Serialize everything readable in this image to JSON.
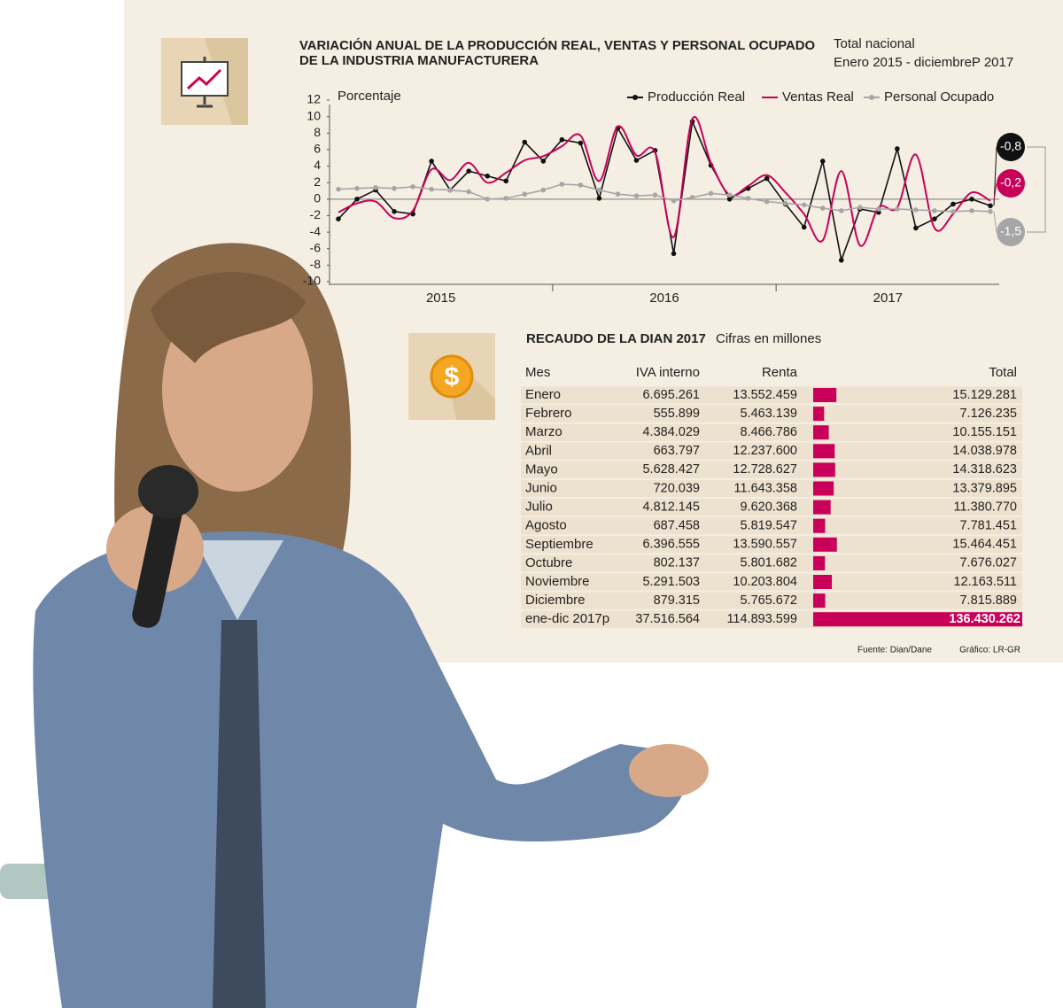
{
  "chart_data": [
    {
      "type": "line",
      "title": [
        "VARIACIÓN ANUAL DE LA PRODUCCIÓN REAL, VENTAS Y PERSONAL OCUPADO",
        "DE LA INDUSTRIA MANUFACTURERA"
      ],
      "subtitle": [
        "Total nacional",
        "Enero 2015 - diciembreP 2017"
      ],
      "ylabel": "Porcentaje",
      "year_labels": [
        "2015",
        "2016",
        "2017"
      ],
      "ylim": [
        -10,
        12
      ],
      "yticks": [
        -10,
        -8,
        -6,
        -4,
        -2,
        0,
        2,
        4,
        6,
        8,
        10,
        12
      ],
      "series": [
        {
          "name": "Producción Real",
          "color": "#111111",
          "markers": true,
          "smooth": false,
          "end_label": "-0,8",
          "values": [
            -2.4,
            0,
            1.1,
            -1.5,
            -1.8,
            4.6,
            1.1,
            3.4,
            2.8,
            2.2,
            6.9,
            4.6,
            7.2,
            6.8,
            0.1,
            8.6,
            4.7,
            5.9,
            -6.6,
            9.4,
            4.1,
            0,
            1.3,
            2.5,
            -0.6,
            -3.4,
            4.6,
            -7.4,
            -1.2,
            -1.6,
            6.1,
            -3.5,
            -2.4,
            -0.6,
            0,
            -0.8
          ]
        },
        {
          "name": "Ventas Real",
          "color": "#c8005a",
          "markers": false,
          "smooth": true,
          "end_label": "-0,2",
          "values": [
            -1.6,
            -0.5,
            -0.3,
            -2.3,
            -1.4,
            3.6,
            2.3,
            4.4,
            2.0,
            3.2,
            4.7,
            5.2,
            6.4,
            7.7,
            2.2,
            8.8,
            5.3,
            5.7,
            -4.6,
            9.7,
            4.4,
            0.5,
            1.6,
            2.9,
            0.8,
            -1.8,
            -5.0,
            3.4,
            -5.6,
            -1.0,
            -1.0,
            5.4,
            -3.5,
            -1.8,
            0.8,
            -0.2
          ]
        },
        {
          "name": "Personal Ocupado",
          "color": "#a6a6a6",
          "markers": true,
          "smooth": false,
          "end_label": "-1,5",
          "values": [
            1.2,
            1.3,
            1.4,
            1.3,
            1.5,
            1.2,
            1.1,
            0.9,
            0.0,
            0.1,
            0.6,
            1.1,
            1.8,
            1.7,
            1.1,
            0.6,
            0.4,
            0.5,
            -0.2,
            0.2,
            0.7,
            0.5,
            0.1,
            -0.3,
            -0.5,
            -0.7,
            -1.1,
            -1.4,
            -1.0,
            -1.2,
            -1.2,
            -1.3,
            -1.4,
            -1.5,
            -1.4,
            -1.5
          ]
        }
      ]
    },
    {
      "type": "table",
      "title": "RECAUDO DE LA DIAN 2017",
      "subtitle": "Cifras en millones",
      "category_label": "Mes",
      "categories": [
        "Enero",
        "Febrero",
        "Marzo",
        "Abril",
        "Mayo",
        "Junio",
        "Julio",
        "Agosto",
        "Septiembre",
        "Octubre",
        "Noviembre",
        "Diciembre",
        "ene-dic 2017p"
      ],
      "series": [
        {
          "name": "IVA interno",
          "values": [
            6695261,
            555899,
            4384029,
            663797,
            5628427,
            720039,
            4812145,
            687458,
            6396555,
            802137,
            5291503,
            879315,
            37516564
          ],
          "value_labels": [
            "6.695.261",
            "555.899",
            "4.384.029",
            "663.797",
            "5.628.427",
            "720.039",
            "4.812.145",
            "687.458",
            "6.396.555",
            "802.137",
            "5.291.503",
            "879.315",
            "37.516.564"
          ]
        },
        {
          "name": "Renta",
          "values": [
            13552459,
            5463139,
            8466786,
            12237600,
            12728627,
            11643358,
            9620368,
            5819547,
            13590557,
            5801682,
            10203804,
            5765672,
            114893599
          ],
          "value_labels": [
            "13.552.459",
            "5.463.139",
            "8.466.786",
            "12.237.600",
            "12.728.627",
            "11.643.358",
            "9.620.368",
            "5.819.547",
            "13.590.557",
            "5.801.682",
            "10.203.804",
            "5.765.672",
            "114.893.599"
          ]
        },
        {
          "name": "Total",
          "color": "#c8005a",
          "values": [
            15129281,
            7126235,
            10155151,
            14038978,
            14318623,
            13379895,
            11380770,
            7781451,
            15464451,
            7676027,
            12163511,
            7815889,
            136430262
          ],
          "value_labels": [
            "15.129.281",
            "7.126.235",
            "10.155.151",
            "14.038.978",
            "14.318.623",
            "13.379.895",
            "11.380.770",
            "7.781.451",
            "15.464.451",
            "7.676.027",
            "12.163.511",
            "7.815.889",
            "136.430.262"
          ]
        }
      ],
      "source": "Fuente: Dian/Dane",
      "credit": "Gráfico: LR-GR"
    }
  ]
}
